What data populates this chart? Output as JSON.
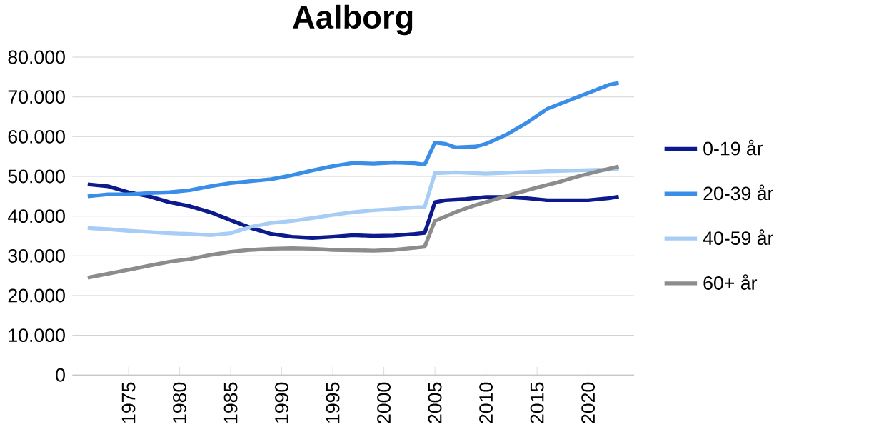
{
  "chart_data": {
    "type": "line",
    "title": "Aalborg",
    "xlim": [
      1969.5,
      2024.5
    ],
    "xticks": [
      1975,
      1980,
      1985,
      1990,
      1995,
      2000,
      2005,
      2010,
      2015,
      2020
    ],
    "ylim": [
      0,
      80000
    ],
    "yticks": [
      {
        "value": 0,
        "label": "0"
      },
      {
        "value": 10000,
        "label": "10.000"
      },
      {
        "value": 20000,
        "label": "20.000"
      },
      {
        "value": 30000,
        "label": "30.000"
      },
      {
        "value": 40000,
        "label": "40.000"
      },
      {
        "value": 50000,
        "label": "50.000"
      },
      {
        "value": 60000,
        "label": "60.000"
      },
      {
        "value": 70000,
        "label": "70.000"
      },
      {
        "value": 80000,
        "label": "80.000"
      }
    ],
    "grid": "y",
    "legend": "right",
    "marker": "none",
    "line_style": "solid",
    "series": [
      {
        "name": "0-19 år",
        "color": "#0c1a8c",
        "x": [
          1971,
          1973,
          1975,
          1977,
          1979,
          1981,
          1983,
          1985,
          1987,
          1989,
          1991,
          1993,
          1995,
          1997,
          1999,
          2001,
          2003,
          2004,
          2005,
          2006,
          2008,
          2010,
          2012,
          2014,
          2016,
          2018,
          2020,
          2022,
          2023
        ],
        "values": [
          48000,
          47500,
          46000,
          45000,
          43500,
          42500,
          41000,
          39000,
          37000,
          35500,
          34800,
          34500,
          34800,
          35200,
          35000,
          35100,
          35500,
          35800,
          43500,
          44000,
          44300,
          44800,
          44800,
          44500,
          44000,
          44000,
          44000,
          44500,
          44900
        ]
      },
      {
        "name": "20-39 år",
        "color": "#3a8ee8",
        "x": [
          1971,
          1973,
          1975,
          1977,
          1979,
          1981,
          1983,
          1985,
          1987,
          1989,
          1991,
          1993,
          1995,
          1997,
          1999,
          2001,
          2003,
          2004,
          2005,
          2006,
          2007,
          2009,
          2010,
          2012,
          2014,
          2016,
          2018,
          2020,
          2022,
          2023
        ],
        "values": [
          45000,
          45500,
          45500,
          45800,
          46000,
          46500,
          47500,
          48300,
          48800,
          49300,
          50300,
          51500,
          52600,
          53400,
          53200,
          53500,
          53300,
          53000,
          58500,
          58200,
          57300,
          57500,
          58200,
          60500,
          63500,
          67000,
          69000,
          71000,
          73000,
          73500
        ]
      },
      {
        "name": "40-59 år",
        "color": "#a8cdf5",
        "x": [
          1971,
          1973,
          1975,
          1977,
          1979,
          1981,
          1983,
          1985,
          1987,
          1989,
          1991,
          1993,
          1995,
          1997,
          1999,
          2001,
          2003,
          2004,
          2005,
          2007,
          2010,
          2013,
          2016,
          2019,
          2023
        ],
        "values": [
          37000,
          36700,
          36300,
          36000,
          35700,
          35500,
          35200,
          35700,
          37300,
          38300,
          38800,
          39500,
          40300,
          41000,
          41500,
          41800,
          42200,
          42300,
          50800,
          51000,
          50700,
          51000,
          51300,
          51500,
          51800
        ]
      },
      {
        "name": "60+ år",
        "color": "#8c8c8c",
        "x": [
          1971,
          1973,
          1975,
          1977,
          1979,
          1981,
          1983,
          1985,
          1987,
          1989,
          1991,
          1993,
          1995,
          1997,
          1999,
          2001,
          2003,
          2004,
          2005,
          2007,
          2009,
          2011,
          2013,
          2015,
          2017,
          2019,
          2021,
          2023
        ],
        "values": [
          24500,
          25500,
          26500,
          27500,
          28500,
          29200,
          30200,
          31000,
          31500,
          31800,
          31900,
          31800,
          31500,
          31400,
          31300,
          31500,
          32000,
          32300,
          38800,
          41000,
          42800,
          44300,
          45800,
          47200,
          48500,
          50000,
          51300,
          52500
        ]
      }
    ]
  }
}
